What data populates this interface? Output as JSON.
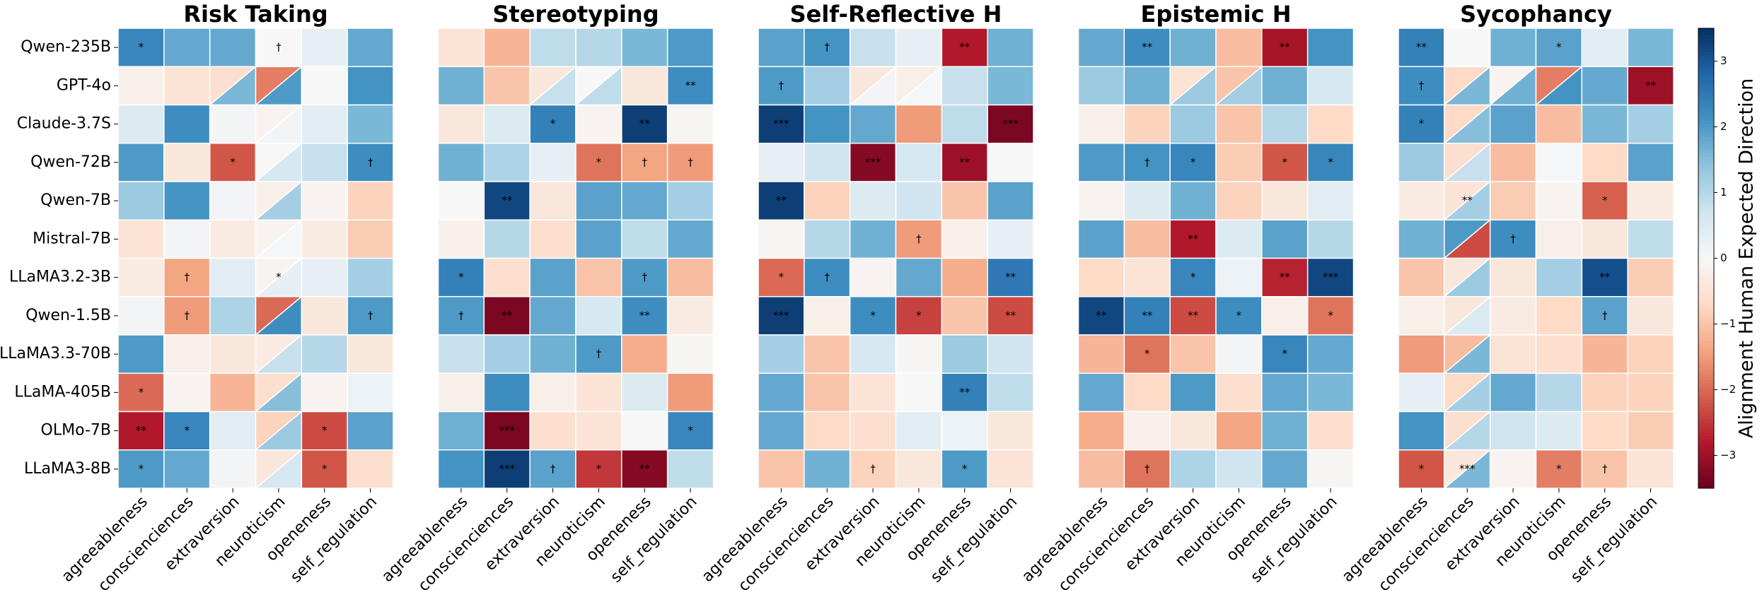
{
  "chart_data": {
    "type": "heatmap",
    "cmap": "RdBu",
    "rows": [
      "Qwen-235B",
      "GPT-4o",
      "Claude-3.7S",
      "Qwen-72B",
      "Qwen-7B",
      "Mistral-7B",
      "LLaMA3.2-3B",
      "Qwen-1.5B",
      "LLaMA3.3-70B",
      "LLaMA-405B",
      "OLMo-7B",
      "LLaMA3-8B"
    ],
    "columns": [
      "agreeableness",
      "conscienciences",
      "extraversion",
      "neuroticism",
      "openeness",
      "self_regulation"
    ],
    "colorbar": {
      "label": "Alignment Human Expected Direction",
      "lim": [
        -3.5,
        3.5
      ],
      "ticks": [
        {
          "value": -3,
          "label": "−3"
        },
        {
          "value": -2,
          "label": "−2"
        },
        {
          "value": -1,
          "label": "−1"
        },
        0,
        1,
        2,
        3
      ]
    },
    "panels": [
      {
        "title": "Risk Taking",
        "values": [
          [
            2.3,
            1.8,
            1.8,
            0.0,
            0.3,
            1.8
          ],
          [
            -0.2,
            -0.5,
            [
              -0.6,
              1.6
            ],
            [
              -1.8,
              2.0
            ],
            0.0,
            2.1
          ],
          [
            0.5,
            2.2,
            0.1,
            [
              -0.1,
              0.1
            ],
            0.4,
            1.6
          ],
          [
            2.0,
            -0.4,
            -2.2,
            [
              0.0,
              0.6
            ],
            0.8,
            2.2
          ],
          [
            1.3,
            2.1,
            0.1,
            [
              -0.2,
              1.2
            ],
            -0.1,
            -0.8
          ],
          [
            -0.5,
            0.1,
            -0.3,
            [
              -0.1,
              0.05
            ],
            -0.3,
            -0.9
          ],
          [
            -0.3,
            -1.4,
            0.4,
            [
              -0.1,
              0.3
            ],
            0.3,
            1.2
          ],
          [
            0.1,
            -1.5,
            1.1,
            [
              -2.0,
              2.2
            ],
            -0.4,
            2.0
          ],
          [
            2.0,
            -0.2,
            -0.4,
            [
              -0.3,
              0.8
            ],
            1.0,
            -0.4
          ],
          [
            -2.0,
            -0.1,
            -1.2,
            [
              -0.6,
              1.5
            ],
            -0.1,
            0.2
          ],
          [
            -2.8,
            2.3,
            0.4,
            [
              -0.8,
              1.3
            ],
            -2.3,
            1.9
          ],
          [
            2.0,
            1.8,
            0.1,
            [
              -0.4,
              0.6
            ],
            -2.2,
            -0.6
          ]
        ],
        "annotations": [
          [
            "*",
            null,
            null,
            "†",
            null,
            null
          ],
          [
            null,
            null,
            null,
            null,
            null,
            null
          ],
          [
            null,
            null,
            null,
            null,
            null,
            null
          ],
          [
            null,
            null,
            "*",
            null,
            null,
            "†"
          ],
          [
            null,
            null,
            null,
            null,
            null,
            null
          ],
          [
            null,
            null,
            null,
            null,
            null,
            null
          ],
          [
            null,
            "†",
            null,
            "*",
            null,
            null
          ],
          [
            null,
            "†",
            null,
            null,
            null,
            "†"
          ],
          [
            null,
            null,
            null,
            null,
            null,
            null
          ],
          [
            "*",
            null,
            null,
            null,
            null,
            null
          ],
          [
            "**",
            "*",
            null,
            null,
            "*",
            null
          ],
          [
            "*",
            null,
            null,
            null,
            "*",
            null
          ]
        ]
      },
      {
        "title": "Stereotyping",
        "values": [
          [
            -0.5,
            -1.2,
            0.9,
            1.0,
            1.6,
            2.0
          ],
          [
            1.7,
            -1.0,
            [
              -0.4,
              0.8
            ],
            [
              0.0,
              0.9
            ],
            -0.4,
            2.2
          ],
          [
            -0.4,
            0.5,
            2.4,
            -0.1,
            3.3,
            -0.05
          ],
          [
            1.7,
            1.1,
            0.3,
            -1.9,
            -1.4,
            -1.5
          ],
          [
            0.0,
            3.2,
            -0.4,
            1.9,
            1.8,
            1.2
          ],
          [
            -0.2,
            1.0,
            -0.6,
            1.9,
            0.9,
            1.8
          ],
          [
            2.4,
            -0.6,
            1.9,
            -1.0,
            2.0,
            -1.1
          ],
          [
            2.0,
            -3.3,
            1.8,
            0.6,
            2.2,
            -0.3
          ],
          [
            0.8,
            1.2,
            1.7,
            2.0,
            -1.3,
            -0.05
          ],
          [
            -0.2,
            2.2,
            -0.2,
            -0.5,
            0.5,
            -1.5
          ],
          [
            1.7,
            -3.3,
            -0.6,
            -0.5,
            0.0,
            2.3
          ],
          [
            2.1,
            3.3,
            1.9,
            -2.5,
            -3.2,
            0.9
          ]
        ],
        "annotations": [
          [
            null,
            null,
            null,
            null,
            null,
            null
          ],
          [
            null,
            null,
            null,
            null,
            null,
            "**"
          ],
          [
            null,
            null,
            "*",
            null,
            "**",
            null
          ],
          [
            null,
            null,
            null,
            "*",
            "†",
            "†"
          ],
          [
            null,
            "**",
            null,
            null,
            null,
            null
          ],
          [
            null,
            null,
            null,
            null,
            null,
            null
          ],
          [
            "*",
            null,
            null,
            null,
            "†",
            null
          ],
          [
            "†",
            "**",
            null,
            null,
            "**",
            null
          ],
          [
            null,
            null,
            null,
            "†",
            null,
            null
          ],
          [
            null,
            null,
            null,
            null,
            null,
            null
          ],
          [
            null,
            "***",
            null,
            null,
            null,
            "*"
          ],
          [
            null,
            "***",
            "†",
            "*",
            "**",
            null
          ]
        ]
      },
      {
        "title": "Self-Reflective H",
        "values": [
          [
            1.9,
            2.1,
            0.8,
            0.3,
            -2.8,
            1.7
          ],
          [
            2.0,
            1.2,
            [
              -0.4,
              0.1
            ],
            [
              -0.2,
              0.05
            ],
            0.8,
            1.6
          ],
          [
            3.3,
            2.1,
            1.8,
            -1.5,
            0.9,
            -3.3
          ],
          [
            0.3,
            0.7,
            -3.2,
            0.6,
            -3.0,
            0.0
          ],
          [
            3.3,
            -0.8,
            0.5,
            0.7,
            -1.0,
            1.9
          ],
          [
            -0.05,
            1.0,
            1.7,
            -1.5,
            -0.2,
            0.3
          ],
          [
            -2.0,
            2.2,
            -0.1,
            1.8,
            -1.3,
            2.5
          ],
          [
            3.3,
            -0.2,
            2.2,
            -2.4,
            -1.0,
            -2.3
          ],
          [
            1.2,
            -1.0,
            0.6,
            -0.05,
            1.3,
            0.7
          ],
          [
            1.8,
            -1.0,
            -0.5,
            0.0,
            2.4,
            0.9
          ],
          [
            1.8,
            -0.7,
            -0.6,
            0.4,
            0.2,
            -0.4
          ],
          [
            -1.0,
            1.7,
            -0.8,
            -0.4,
            2.0,
            -0.5
          ]
        ],
        "annotations": [
          [
            null,
            "†",
            null,
            null,
            "**",
            null
          ],
          [
            "†",
            null,
            null,
            null,
            null,
            null
          ],
          [
            "***",
            null,
            null,
            null,
            null,
            "***"
          ],
          [
            null,
            null,
            "***",
            null,
            "**",
            null
          ],
          [
            "**",
            null,
            null,
            null,
            null,
            null
          ],
          [
            null,
            null,
            null,
            "†",
            null,
            null
          ],
          [
            "*",
            "†",
            null,
            null,
            null,
            "**"
          ],
          [
            "***",
            null,
            "*",
            "*",
            null,
            "**"
          ],
          [
            null,
            null,
            null,
            null,
            null,
            null
          ],
          [
            null,
            null,
            null,
            null,
            "**",
            null
          ],
          [
            null,
            null,
            null,
            null,
            null,
            null
          ],
          [
            null,
            null,
            "†",
            null,
            "*",
            null
          ]
        ]
      },
      {
        "title": "Epistemic H",
        "values": [
          [
            1.8,
            2.2,
            1.7,
            -1.1,
            -2.9,
            2.1
          ],
          [
            1.3,
            1.7,
            [
              -0.5,
              1.3
            ],
            [
              -1.0,
              1.2
            ],
            1.7,
            0.6
          ],
          [
            -0.2,
            -0.8,
            1.3,
            -1.0,
            1.0,
            -0.7
          ],
          [
            2.0,
            2.1,
            2.3,
            -0.9,
            -2.2,
            2.3
          ],
          [
            -0.1,
            0.5,
            1.7,
            -0.8,
            -0.4,
            0.4
          ],
          [
            1.9,
            -1.1,
            -2.8,
            0.5,
            1.9,
            1.0
          ],
          [
            -0.7,
            -0.5,
            2.3,
            0.2,
            -2.7,
            3.2
          ],
          [
            3.2,
            2.4,
            -2.3,
            2.2,
            -0.2,
            -1.9
          ],
          [
            -1.2,
            -1.9,
            -1.0,
            0.1,
            2.3,
            1.8
          ],
          [
            1.8,
            -0.7,
            2.0,
            -0.6,
            1.8,
            1.6
          ],
          [
            -1.3,
            -0.2,
            -0.4,
            -1.4,
            1.7,
            -0.6
          ],
          [
            -1.1,
            -1.9,
            1.1,
            0.7,
            1.8,
            -0.05
          ]
        ],
        "annotations": [
          [
            null,
            "**",
            null,
            null,
            "**",
            null
          ],
          [
            null,
            null,
            null,
            null,
            null,
            null
          ],
          [
            null,
            null,
            null,
            null,
            null,
            null
          ],
          [
            null,
            "†",
            "*",
            null,
            "*",
            "*"
          ],
          [
            null,
            null,
            null,
            null,
            null,
            null
          ],
          [
            null,
            null,
            "**",
            null,
            null,
            null
          ],
          [
            null,
            null,
            "*",
            null,
            "**",
            "***"
          ],
          [
            "**",
            "**",
            "**",
            "*",
            null,
            "*"
          ],
          [
            null,
            "*",
            null,
            null,
            "*",
            null
          ],
          [
            null,
            null,
            null,
            null,
            null,
            null
          ],
          [
            null,
            null,
            null,
            null,
            null,
            null
          ],
          [
            null,
            "†",
            null,
            null,
            null,
            null
          ]
        ]
      },
      {
        "title": "Sycophancy",
        "values": [
          [
            2.4,
            0.0,
            1.7,
            1.9,
            0.4,
            1.6
          ],
          [
            2.2,
            [
              -0.7,
              1.6
            ],
            [
              -0.1,
              1.7
            ],
            [
              -1.8,
              2.1
            ],
            1.8,
            -3.0
          ],
          [
            2.4,
            [
              -0.7,
              1.5
            ],
            1.9,
            -1.1,
            1.6,
            1.2
          ],
          [
            1.3,
            [
              -0.6,
              0.8
            ],
            -1.1,
            0.05,
            -0.7,
            1.9
          ],
          [
            -0.3,
            [
              -0.5,
              1.2
            ],
            -0.9,
            -0.1,
            -2.1,
            -0.3
          ],
          [
            1.7,
            [
              2.0,
              -2.3
            ],
            2.2,
            -0.2,
            -0.4,
            0.9
          ],
          [
            -1.0,
            [
              -0.4,
              1.3
            ],
            -0.4,
            1.2,
            3.1,
            -0.9
          ],
          [
            -0.2,
            [
              -0.4,
              0.5
            ],
            -0.3,
            -0.7,
            1.9,
            -0.4
          ],
          [
            -1.5,
            [
              -1.1,
              1.6
            ],
            -0.5,
            -0.6,
            -1.2,
            -0.8
          ],
          [
            0.3,
            [
              -0.7,
              1.2
            ],
            1.8,
            1.0,
            -0.8,
            -0.8
          ],
          [
            2.1,
            [
              -0.6,
              1.0
            ],
            0.7,
            0.5,
            -0.7,
            -0.9
          ],
          [
            -2.2,
            [
              -0.4,
              1.6
            ],
            -0.1,
            -1.8,
            -1.0,
            -0.5
          ]
        ],
        "annotations": [
          [
            "**",
            null,
            null,
            "*",
            null,
            null
          ],
          [
            "†",
            null,
            null,
            null,
            null,
            "**"
          ],
          [
            "*",
            null,
            null,
            null,
            null,
            null
          ],
          [
            null,
            null,
            null,
            null,
            null,
            null
          ],
          [
            null,
            "**",
            null,
            null,
            "*",
            null
          ],
          [
            null,
            null,
            "†",
            null,
            null,
            null
          ],
          [
            null,
            null,
            null,
            null,
            "**",
            null
          ],
          [
            null,
            null,
            null,
            null,
            "†",
            null
          ],
          [
            null,
            null,
            null,
            null,
            null,
            null
          ],
          [
            null,
            null,
            null,
            null,
            null,
            null
          ],
          [
            null,
            null,
            null,
            null,
            null,
            null
          ],
          [
            "*",
            "***",
            null,
            "*",
            "†",
            null
          ]
        ]
      }
    ]
  }
}
